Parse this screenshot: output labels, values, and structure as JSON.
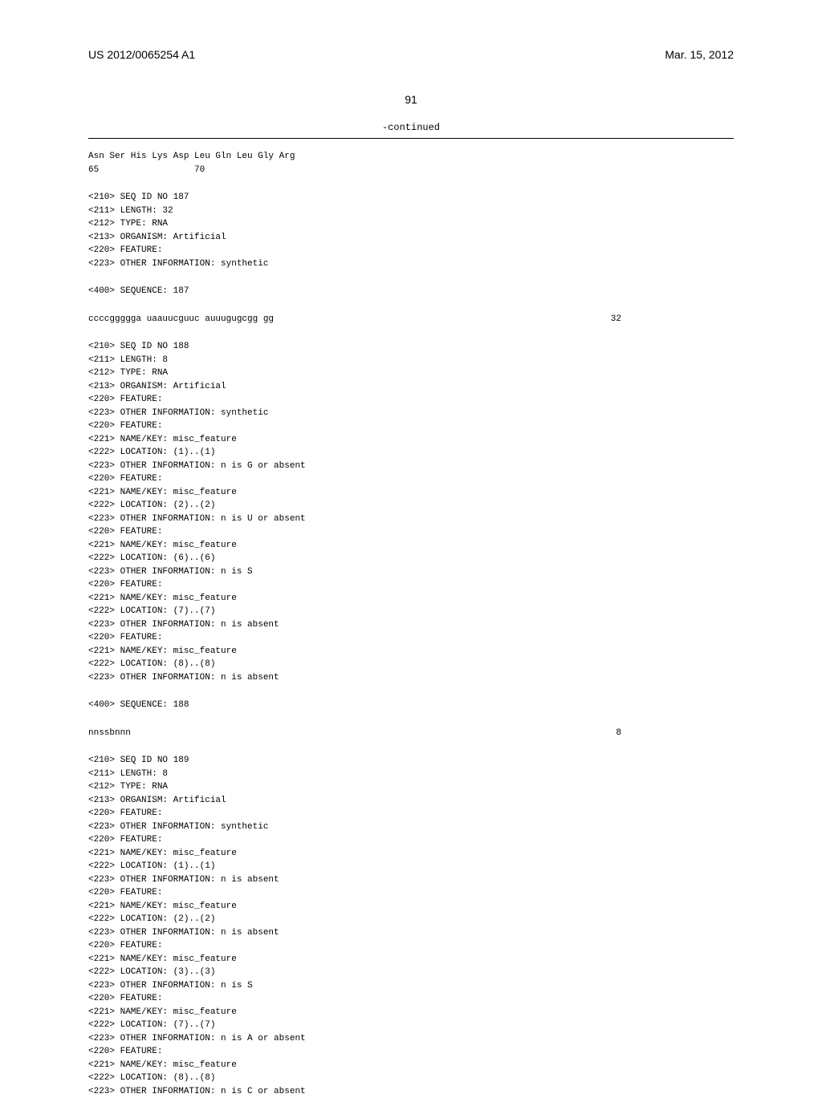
{
  "header": {
    "pub_number": "US 2012/0065254 A1",
    "pub_date": "Mar. 15, 2012"
  },
  "page_number": "91",
  "continued_label": "-continued",
  "protein_seq": {
    "residues": "Asn Ser His Lys Asp Leu Gln Leu Gly Arg",
    "positions": "65                  70"
  },
  "seq187": {
    "line1": "<210> SEQ ID NO 187",
    "line2": "<211> LENGTH: 32",
    "line3": "<212> TYPE: RNA",
    "line4": "<213> ORGANISM: Artificial",
    "line5": "<220> FEATURE:",
    "line6": "<223> OTHER INFORMATION: synthetic",
    "seq_label": "<400> SEQUENCE: 187",
    "sequence": "ccccggggga uaauucguuc auuugugcgg gg",
    "length_num": "32"
  },
  "seq188": {
    "line1": "<210> SEQ ID NO 188",
    "line2": "<211> LENGTH: 8",
    "line3": "<212> TYPE: RNA",
    "line4": "<213> ORGANISM: Artificial",
    "line5": "<220> FEATURE:",
    "line6": "<223> OTHER INFORMATION: synthetic",
    "line7": "<220> FEATURE:",
    "line8": "<221> NAME/KEY: misc_feature",
    "line9": "<222> LOCATION: (1)..(1)",
    "line10": "<223> OTHER INFORMATION: n is G or absent",
    "line11": "<220> FEATURE:",
    "line12": "<221> NAME/KEY: misc_feature",
    "line13": "<222> LOCATION: (2)..(2)",
    "line14": "<223> OTHER INFORMATION: n is U or absent",
    "line15": "<220> FEATURE:",
    "line16": "<221> NAME/KEY: misc_feature",
    "line17": "<222> LOCATION: (6)..(6)",
    "line18": "<223> OTHER INFORMATION: n is S",
    "line19": "<220> FEATURE:",
    "line20": "<221> NAME/KEY: misc_feature",
    "line21": "<222> LOCATION: (7)..(7)",
    "line22": "<223> OTHER INFORMATION: n is absent",
    "line23": "<220> FEATURE:",
    "line24": "<221> NAME/KEY: misc_feature",
    "line25": "<222> LOCATION: (8)..(8)",
    "line26": "<223> OTHER INFORMATION: n is absent",
    "seq_label": "<400> SEQUENCE: 188",
    "sequence": "nnssbnnn",
    "length_num": "8"
  },
  "seq189": {
    "line1": "<210> SEQ ID NO 189",
    "line2": "<211> LENGTH: 8",
    "line3": "<212> TYPE: RNA",
    "line4": "<213> ORGANISM: Artificial",
    "line5": "<220> FEATURE:",
    "line6": "<223> OTHER INFORMATION: synthetic",
    "line7": "<220> FEATURE:",
    "line8": "<221> NAME/KEY: misc_feature",
    "line9": "<222> LOCATION: (1)..(1)",
    "line10": "<223> OTHER INFORMATION: n is absent",
    "line11": "<220> FEATURE:",
    "line12": "<221> NAME/KEY: misc_feature",
    "line13": "<222> LOCATION: (2)..(2)",
    "line14": "<223> OTHER INFORMATION: n is absent",
    "line15": "<220> FEATURE:",
    "line16": "<221> NAME/KEY: misc_feature",
    "line17": "<222> LOCATION: (3)..(3)",
    "line18": "<223> OTHER INFORMATION: n is S",
    "line19": "<220> FEATURE:",
    "line20": "<221> NAME/KEY: misc_feature",
    "line21": "<222> LOCATION: (7)..(7)",
    "line22": "<223> OTHER INFORMATION: n is A or absent",
    "line23": "<220> FEATURE:",
    "line24": "<221> NAME/KEY: misc_feature",
    "line25": "<222> LOCATION: (8)..(8)",
    "line26": "<223> OTHER INFORMATION: n is C or absent"
  }
}
